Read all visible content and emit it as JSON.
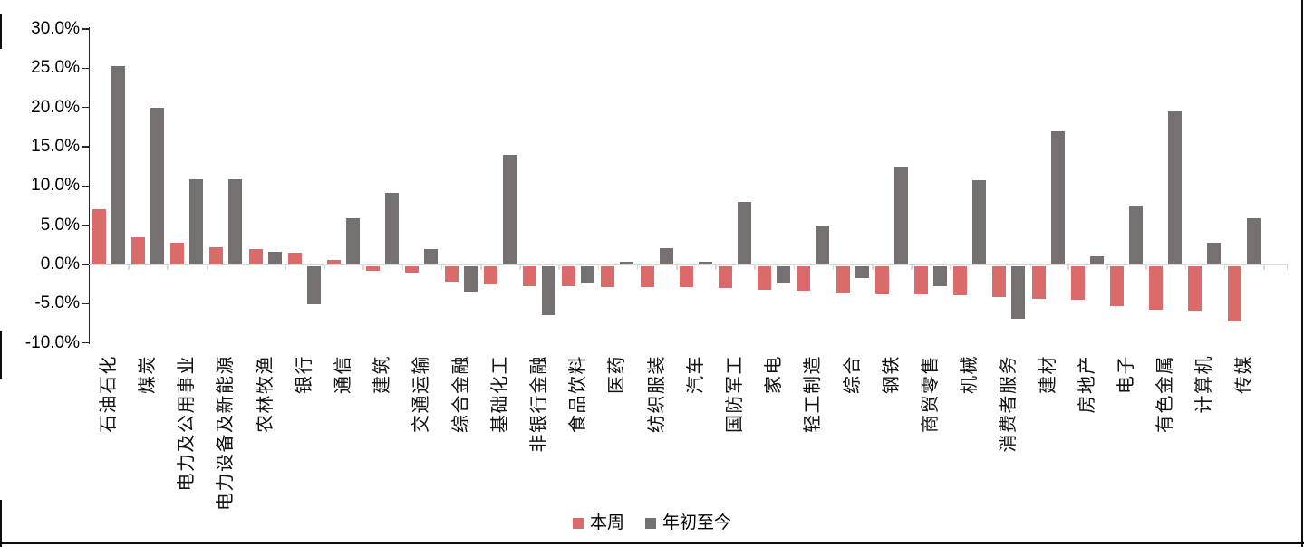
{
  "chart_data": {
    "type": "bar",
    "title": "",
    "xlabel": "",
    "ylabel": "",
    "ylim": [
      -10,
      30
    ],
    "grid": false,
    "legend_position": "bottom",
    "y_ticks": [
      "30.0%",
      "25.0%",
      "20.0%",
      "15.0%",
      "10.0%",
      "5.0%",
      "0.0%",
      "-5.0%",
      "-10.0%"
    ],
    "y_tick_values": [
      30,
      25,
      20,
      15,
      10,
      5,
      0,
      -5,
      -10
    ],
    "categories": [
      "石油石化",
      "煤炭",
      "电力及公用事业",
      "电力设备及新能源",
      "农林牧渔",
      "银行",
      "通信",
      "建筑",
      "交通运输",
      "综合金融",
      "基础化工",
      "非银行金融",
      "食品饮料",
      "医药",
      "纺织服装",
      "汽车",
      "国防军工",
      "家电",
      "轻工制造",
      "综合",
      "钢铁",
      "商贸零售",
      "机械",
      "消费者服务",
      "建材",
      "房地产",
      "电子",
      "有色金属",
      "计算机",
      "传媒"
    ],
    "series": [
      {
        "name": "本周",
        "color": "#DA6B6B",
        "values": [
          7.1,
          3.5,
          2.8,
          2.2,
          2.0,
          1.5,
          0.6,
          -0.6,
          -0.9,
          -2.0,
          -2.4,
          -2.6,
          -2.6,
          -2.7,
          -2.7,
          -2.7,
          -2.8,
          -3.1,
          -3.2,
          -3.5,
          -3.6,
          -3.6,
          -3.8,
          -4.0,
          -4.2,
          -4.3,
          -5.1,
          -5.6,
          -5.7,
          -7.1
        ]
      },
      {
        "name": "年初至今",
        "color": "#757171",
        "values": [
          25.3,
          20.0,
          10.9,
          10.8,
          1.6,
          -4.9,
          5.9,
          9.1,
          2.0,
          -3.3,
          14.0,
          -6.3,
          -2.2,
          0.3,
          2.1,
          0.3,
          8.0,
          -2.2,
          5.0,
          -1.5,
          12.5,
          -2.6,
          10.7,
          -6.8,
          17.0,
          1.1,
          7.5,
          19.5,
          2.8,
          5.9
        ]
      }
    ]
  },
  "colors": {
    "weekly_bar": "#DA6B6B",
    "ytd_bar": "#757171",
    "axis_line": "#262626",
    "zero_gridline": "#D9D9D9",
    "text": "#000000",
    "frame_border": "#0d0d0d"
  }
}
